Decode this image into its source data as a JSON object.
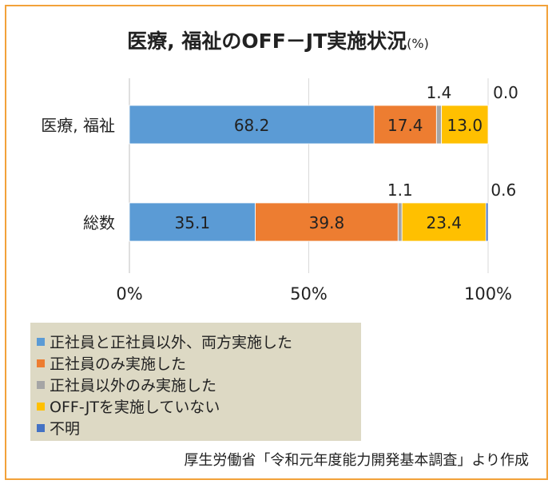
{
  "title": "医療, 福祉のOFF－JT実施状況",
  "title_unit": "(%)",
  "source": "厚生労働省「令和元年度能力開発基本調査」より作成",
  "chart_data": {
    "type": "bar",
    "orientation": "horizontal",
    "stacked": "100%",
    "categories": [
      "医療, 福祉",
      "総数"
    ],
    "series": [
      {
        "name": "正社員と正社員以外、両方実施した",
        "color": "#5b9bd5",
        "values": [
          68.2,
          35.1
        ]
      },
      {
        "name": "正社員のみ実施した",
        "color": "#ed7d31",
        "values": [
          17.4,
          39.8
        ]
      },
      {
        "name": "正社員以外のみ実施した",
        "color": "#a5a5a5",
        "values": [
          1.4,
          1.1
        ]
      },
      {
        "name": "OFF-JTを実施していない",
        "color": "#ffc000",
        "values": [
          13.0,
          23.4
        ]
      },
      {
        "name": "不明",
        "color": "#4472c4",
        "values": [
          0.0,
          0.6
        ]
      }
    ],
    "value_labels": [
      [
        "68.2",
        "17.4",
        "1.4",
        "13.0",
        "0.0"
      ],
      [
        "35.1",
        "39.8",
        "1.1",
        "23.4",
        "0.6"
      ]
    ],
    "xlim": [
      0,
      100
    ],
    "xticks": [
      "0%",
      "50%",
      "100%"
    ],
    "grid": true,
    "legend_position": "bottom-left"
  }
}
